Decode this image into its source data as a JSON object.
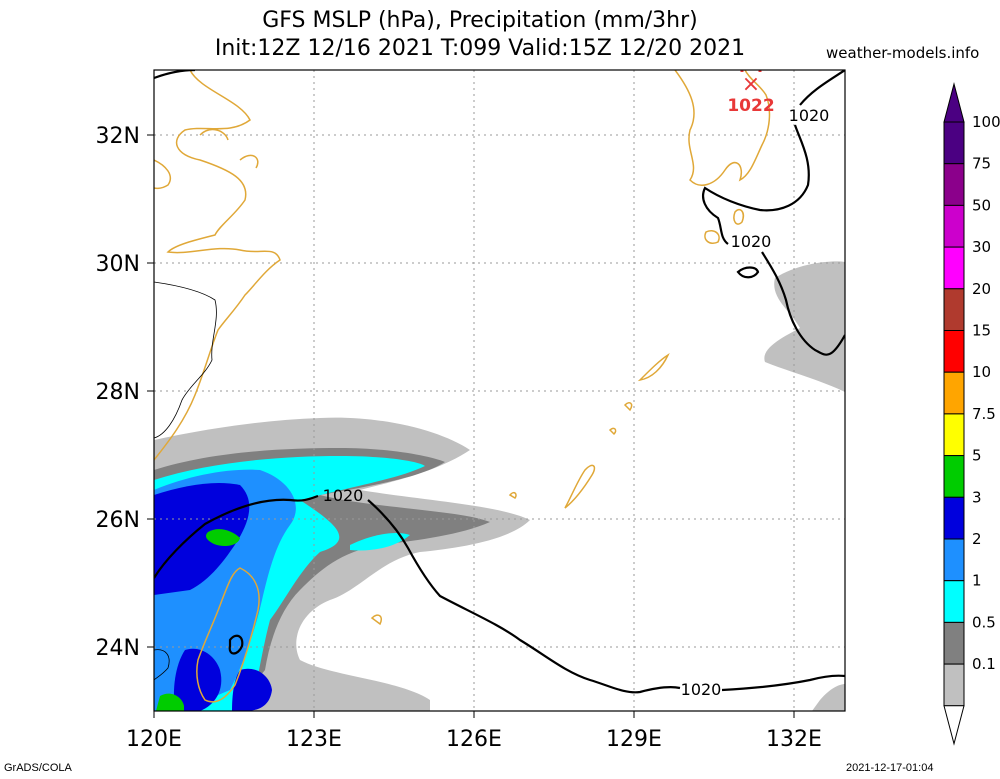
{
  "title_line1": "GFS MSLP (hPa), Precipitation (mm/3hr)",
  "title_line2": "Init:12Z 12/16 2021 T:099 Valid:15Z 12/20 2021",
  "website": "weather-models.info",
  "footer_left": "GrADS/COLA",
  "footer_right": "2021-12-17-01:04",
  "map": {
    "lon_ticks": [
      "120E",
      "123E",
      "126E",
      "129E",
      "132E"
    ],
    "lat_ticks": [
      "24N",
      "26N",
      "28N",
      "30N",
      "32N"
    ],
    "isobar_labels": [
      "1020",
      "1020",
      "1020",
      "1020"
    ],
    "high_label": "1022",
    "high_marker": "×",
    "colors": {
      "coast": "#e0a838",
      "isobar": "#000000",
      "high": "#e83838",
      "grid": "#9a9a9a"
    }
  },
  "colorbar": {
    "labels": [
      "100",
      "75",
      "50",
      "30",
      "20",
      "15",
      "10",
      "7.5",
      "5",
      "3",
      "2",
      "1",
      "0.5",
      "0.1"
    ],
    "colors": [
      "#4b0082",
      "#8b008b",
      "#cc00cc",
      "#ff00ff",
      "#b03a2e",
      "#ff0000",
      "#ffa500",
      "#ffff00",
      "#00cc00",
      "#0000dd",
      "#1e90ff",
      "#00ffff",
      "#808080",
      "#c0c0c0"
    ]
  }
}
